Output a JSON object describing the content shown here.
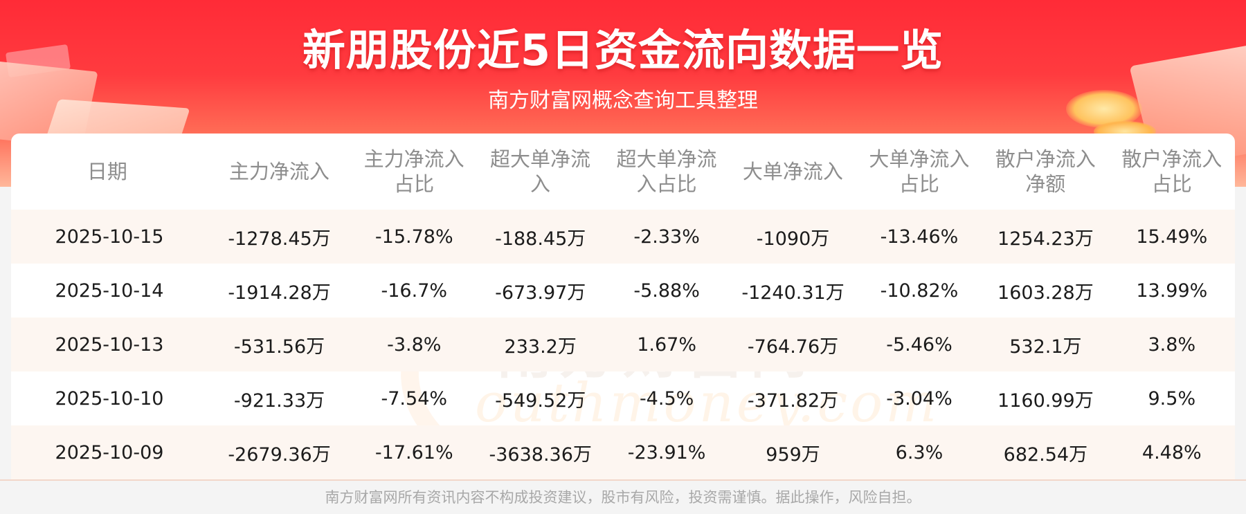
{
  "header": {
    "title": "新朋股份近5日资金流向数据一览",
    "subtitle": "南方财富网概念查询工具整理"
  },
  "watermark": {
    "cn": "南方财富网",
    "en": "outhmoney.com"
  },
  "table": {
    "columns": [
      [
        "日期"
      ],
      [
        "主力净流入"
      ],
      [
        "主力净流入",
        "占比"
      ],
      [
        "超大单净流",
        "入"
      ],
      [
        "超大单净流",
        "入占比"
      ],
      [
        "大单净流入"
      ],
      [
        "大单净流入",
        "占比"
      ],
      [
        "散户净流入",
        "净额"
      ],
      [
        "散户净流入",
        "占比"
      ]
    ],
    "rows": [
      [
        "2025-10-15",
        "-1278.45万",
        "-15.78%",
        "-188.45万",
        "-2.33%",
        "-1090万",
        "-13.46%",
        "1254.23万",
        "15.49%"
      ],
      [
        "2025-10-14",
        "-1914.28万",
        "-16.7%",
        "-673.97万",
        "-5.88%",
        "-1240.31万",
        "-10.82%",
        "1603.28万",
        "13.99%"
      ],
      [
        "2025-10-13",
        "-531.56万",
        "-3.8%",
        "233.2万",
        "1.67%",
        "-764.76万",
        "-5.46%",
        "532.1万",
        "3.8%"
      ],
      [
        "2025-10-10",
        "-921.33万",
        "-7.54%",
        "-549.52万",
        "-4.5%",
        "-371.82万",
        "-3.04%",
        "1160.99万",
        "9.5%"
      ],
      [
        "2025-10-09",
        "-2679.36万",
        "-17.61%",
        "-3638.36万",
        "-23.91%",
        "959万",
        "6.3%",
        "682.54万",
        "4.48%"
      ]
    ]
  },
  "footer": {
    "disclaimer": "南方财富网所有资讯内容不构成投资建议，股市有风险，投资需谨慎。据此操作，风险自担。"
  }
}
